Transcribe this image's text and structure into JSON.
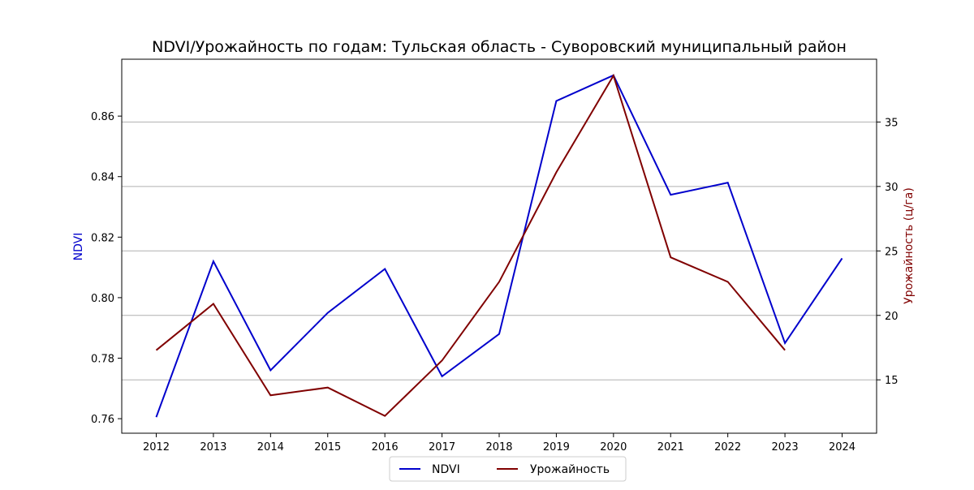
{
  "chart_data": {
    "type": "line",
    "title": "NDVI/Урожайность по годам: Тульская область - Суворовский муниципальный район",
    "xlabel": "",
    "x": [
      2012,
      2013,
      2014,
      2015,
      2016,
      2017,
      2018,
      2019,
      2020,
      2021,
      2022,
      2023,
      2024
    ],
    "left_axis": {
      "label": "NDVI",
      "color": "#0000cc",
      "ticks": [
        "0.76",
        "0.78",
        "0.80",
        "0.82",
        "0.84",
        "0.86"
      ],
      "ylim": [
        0.7552,
        0.8788
      ]
    },
    "right_axis": {
      "label": "Урожайность (ц/га)",
      "color": "#800000",
      "ticks": [
        "15",
        "20",
        "25",
        "30",
        "35"
      ],
      "ylim": [
        10.86,
        39.87
      ]
    },
    "series": [
      {
        "name": "NDVI",
        "axis": "left",
        "color": "#0000cc",
        "values": [
          0.7605,
          0.812,
          0.776,
          0.795,
          0.8095,
          0.774,
          0.788,
          0.865,
          0.8735,
          0.834,
          0.838,
          0.785,
          0.813
        ]
      },
      {
        "name": "Урожайность",
        "axis": "right",
        "color": "#800000",
        "values": [
          17.3,
          20.9,
          13.8,
          14.4,
          12.2,
          16.5,
          22.6,
          31.1,
          38.6,
          24.5,
          22.6,
          17.3,
          null
        ]
      }
    ],
    "grid": "horizontal lines at right-axis ticks",
    "legend_position": "bottom-center"
  }
}
